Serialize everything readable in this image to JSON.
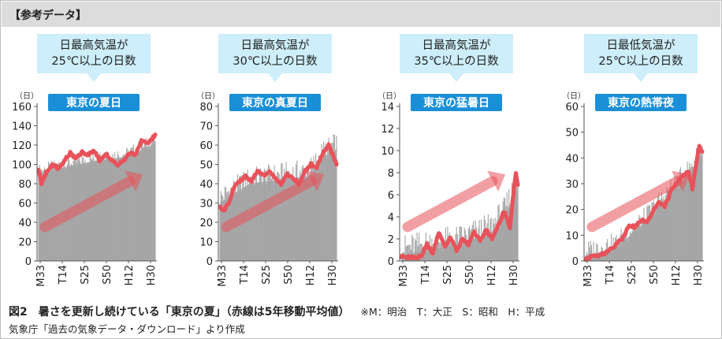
{
  "header": {
    "label": "【参考データ】"
  },
  "caption": {
    "title": "図2　暑さを更新し続けている「東京の夏」（赤線は5年移動平均値）",
    "legend_note": "※M：明治　T：大正　S：昭和　H：平成",
    "source": "気象庁「過去の気象データ・ダウンロード」より作成"
  },
  "colors": {
    "bars": "#b4b4b4",
    "avg_line": "#e8525a",
    "badge": "#1a8fd8",
    "callout": "#cdeefa",
    "arrow": "#e8525a"
  },
  "chart_data": [
    {
      "type": "bar",
      "callout": [
        "日最高気温が",
        "25℃以上の日数"
      ],
      "badge": "東京の夏日",
      "y_unit": "（日）",
      "ylim": [
        0,
        160
      ],
      "yticks": [
        0,
        20,
        40,
        60,
        80,
        100,
        120,
        140,
        160
      ],
      "x_labels": [
        "M33",
        "T14",
        "S25",
        "S50",
        "H12",
        "H30"
      ],
      "avg_anchors": [
        [
          0,
          96
        ],
        [
          3,
          80
        ],
        [
          8,
          92
        ],
        [
          14,
          100
        ],
        [
          20,
          96
        ],
        [
          26,
          104
        ],
        [
          32,
          112
        ],
        [
          38,
          106
        ],
        [
          44,
          113
        ],
        [
          50,
          110
        ],
        [
          56,
          115
        ],
        [
          62,
          104
        ],
        [
          68,
          112
        ],
        [
          74,
          104
        ],
        [
          80,
          100
        ],
        [
          86,
          104
        ],
        [
          92,
          112
        ],
        [
          98,
          110
        ],
        [
          104,
          124
        ],
        [
          110,
          122
        ],
        [
          116,
          128
        ],
        [
          118,
          130
        ]
      ],
      "bar_anchors": [
        [
          0,
          90
        ],
        [
          30,
          98
        ],
        [
          60,
          104
        ],
        [
          90,
          108
        ],
        [
          105,
          116
        ],
        [
          118,
          122
        ]
      ],
      "noise": 14
    },
    {
      "type": "bar",
      "callout": [
        "日最高気温が",
        "30℃以上の日数"
      ],
      "badge": "東京の真夏日",
      "y_unit": "（日）",
      "ylim": [
        0,
        80
      ],
      "yticks": [
        0,
        10,
        20,
        30,
        40,
        50,
        60,
        70,
        80
      ],
      "x_labels": [
        "M33",
        "T14",
        "S25",
        "S50",
        "H12",
        "H30"
      ],
      "avg_anchors": [
        [
          0,
          28
        ],
        [
          4,
          26
        ],
        [
          10,
          31
        ],
        [
          14,
          38
        ],
        [
          20,
          41
        ],
        [
          26,
          44
        ],
        [
          32,
          41
        ],
        [
          38,
          47
        ],
        [
          44,
          44
        ],
        [
          50,
          46
        ],
        [
          56,
          43
        ],
        [
          62,
          40
        ],
        [
          68,
          45
        ],
        [
          74,
          43
        ],
        [
          80,
          40
        ],
        [
          86,
          46
        ],
        [
          92,
          50
        ],
        [
          98,
          48
        ],
        [
          104,
          56
        ],
        [
          110,
          60
        ],
        [
          114,
          55
        ],
        [
          118,
          50
        ]
      ],
      "bar_anchors": [
        [
          0,
          30
        ],
        [
          30,
          40
        ],
        [
          60,
          42
        ],
        [
          90,
          44
        ],
        [
          105,
          54
        ],
        [
          118,
          58
        ]
      ],
      "noise": 12
    },
    {
      "type": "bar",
      "callout": [
        "日最高気温が",
        "35℃以上の日数"
      ],
      "badge": "東京の猛暑日",
      "y_unit": "（日）",
      "ylim": [
        0,
        14
      ],
      "yticks": [
        0,
        2,
        4,
        6,
        8,
        10,
        12,
        14
      ],
      "x_labels": [
        "M33",
        "T14",
        "S25",
        "S50",
        "H12",
        "H30"
      ],
      "avg_anchors": [
        [
          0,
          0.4
        ],
        [
          10,
          0.3
        ],
        [
          20,
          0.4
        ],
        [
          26,
          1.5
        ],
        [
          32,
          0.7
        ],
        [
          38,
          2.6
        ],
        [
          44,
          1.2
        ],
        [
          50,
          2.2
        ],
        [
          56,
          0.9
        ],
        [
          62,
          2.0
        ],
        [
          68,
          1.5
        ],
        [
          74,
          2.6
        ],
        [
          80,
          1.8
        ],
        [
          86,
          2.8
        ],
        [
          92,
          2.0
        ],
        [
          98,
          3.2
        ],
        [
          104,
          4.5
        ],
        [
          110,
          3.0
        ],
        [
          114,
          6.5
        ],
        [
          116,
          8.0
        ],
        [
          118,
          7.0
        ]
      ],
      "bar_anchors": [
        [
          0,
          0.5
        ],
        [
          25,
          1.0
        ],
        [
          60,
          1.5
        ],
        [
          90,
          2.5
        ],
        [
          105,
          4.0
        ],
        [
          118,
          7.0
        ]
      ],
      "noise": 2.5
    },
    {
      "type": "bar",
      "callout": [
        "日最低気温が",
        "25℃以上の日数"
      ],
      "badge": "東京の熱帯夜",
      "y_unit": "（日）",
      "ylim": [
        0,
        60
      ],
      "yticks": [
        0,
        10,
        20,
        30,
        40,
        50,
        60
      ],
      "x_labels": [
        "M33",
        "T14",
        "S25",
        "S50",
        "H12",
        "H30"
      ],
      "avg_anchors": [
        [
          0,
          1
        ],
        [
          10,
          2
        ],
        [
          20,
          3
        ],
        [
          30,
          6
        ],
        [
          38,
          9
        ],
        [
          44,
          14
        ],
        [
          50,
          13
        ],
        [
          56,
          16
        ],
        [
          62,
          15
        ],
        [
          68,
          19
        ],
        [
          74,
          23
        ],
        [
          80,
          21
        ],
        [
          86,
          27
        ],
        [
          92,
          30
        ],
        [
          98,
          33
        ],
        [
          104,
          35
        ],
        [
          108,
          28
        ],
        [
          112,
          38
        ],
        [
          115,
          45
        ],
        [
          118,
          42
        ]
      ],
      "bar_anchors": [
        [
          0,
          2
        ],
        [
          30,
          5
        ],
        [
          60,
          15
        ],
        [
          90,
          28
        ],
        [
          105,
          34
        ],
        [
          118,
          42
        ]
      ],
      "noise": 8
    }
  ]
}
